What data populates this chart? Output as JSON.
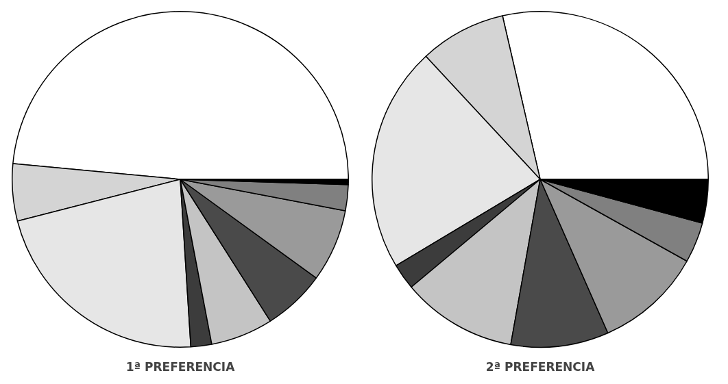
{
  "chart_data": [
    {
      "type": "pie",
      "title": "1ª PREFERENCIA",
      "categories": [
        null,
        null,
        null,
        null,
        null,
        null,
        null,
        null,
        null
      ],
      "values": [
        48.5,
        5.5,
        22,
        2,
        6,
        6,
        7,
        2.5,
        0.5
      ],
      "colors": [
        "#ffffff",
        "#d4d4d4",
        "#e6e6e6",
        "#3c3c3c",
        "#c4c4c4",
        "#4a4a4a",
        "#9a9a9a",
        "#808080",
        "#000000"
      ]
    },
    {
      "type": "pie",
      "title": "2ª PREFERENCIA",
      "categories": [
        null,
        null,
        null,
        null,
        null,
        null,
        null,
        null,
        null
      ],
      "values": [
        28.6,
        8.3,
        21.7,
        2.5,
        11.1,
        9.4,
        10.3,
        3.9,
        4.2
      ],
      "colors": [
        "#ffffff",
        "#d4d4d4",
        "#e6e6e6",
        "#3c3c3c",
        "#c4c4c4",
        "#4a4a4a",
        "#9a9a9a",
        "#808080",
        "#000000"
      ]
    }
  ]
}
